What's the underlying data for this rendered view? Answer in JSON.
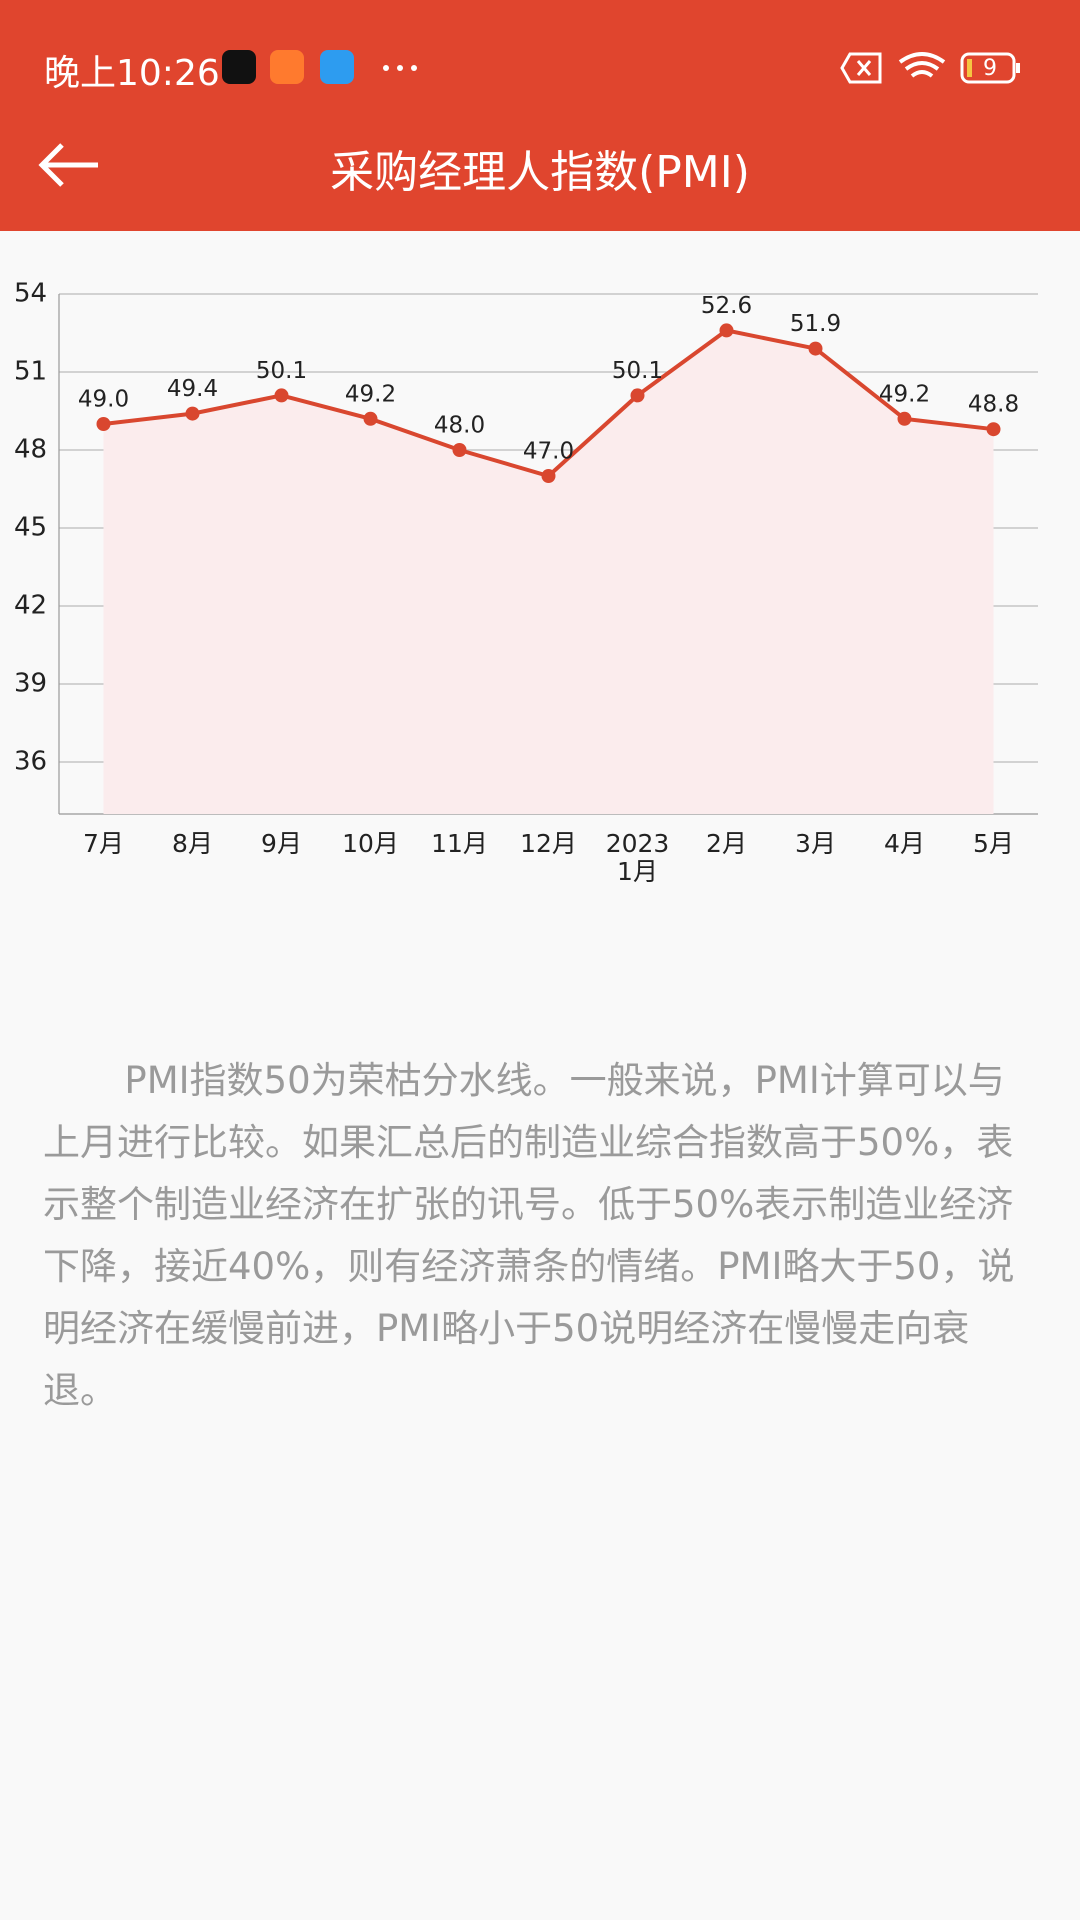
{
  "status_bar": {
    "time": "晚上10:26",
    "battery": "9"
  },
  "header": {
    "title": "采购经理人指数(PMI)"
  },
  "chart_data": {
    "type": "line",
    "categories": [
      "7月",
      "8月",
      "9月",
      "10月",
      "11月",
      "12月",
      "2023\n1月",
      "2月",
      "3月",
      "4月",
      "5月"
    ],
    "values": [
      49.0,
      49.4,
      50.1,
      49.2,
      48.0,
      47.0,
      50.1,
      52.6,
      51.9,
      49.2,
      48.8
    ],
    "value_labels": [
      "49.0",
      "49.4",
      "50.1",
      "49.2",
      "48.0",
      "47.0",
      "50.1",
      "52.6",
      "51.9",
      "49.2",
      "48.8"
    ],
    "color": "#d9472f",
    "area_color": "#fbeced",
    "ylim": [
      34,
      54
    ],
    "yticks": [
      36,
      39,
      42,
      45,
      48,
      51,
      54
    ],
    "grid": true
  },
  "description": "PMI指数50为荣枯分水线。一般来说，PMI计算可以与上月进行比较。如果汇总后的制造业综合指数高于50%，表示整个制造业经济在扩张的讯号。低于50%表示制造业经济下降，接近40%，则有经济萧条的情绪。PMI略大于50，说明经济在缓慢前进，PMI略小于50说明经济在慢慢走向衰退。"
}
